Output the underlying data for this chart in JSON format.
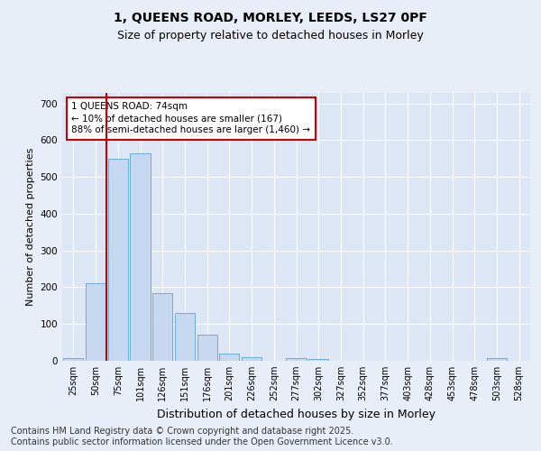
{
  "title1": "1, QUEENS ROAD, MORLEY, LEEDS, LS27 0PF",
  "title2": "Size of property relative to detached houses in Morley",
  "xlabel": "Distribution of detached houses by size in Morley",
  "ylabel": "Number of detached properties",
  "categories": [
    "25sqm",
    "50sqm",
    "75sqm",
    "101sqm",
    "126sqm",
    "151sqm",
    "176sqm",
    "201sqm",
    "226sqm",
    "252sqm",
    "277sqm",
    "302sqm",
    "327sqm",
    "352sqm",
    "377sqm",
    "403sqm",
    "428sqm",
    "453sqm",
    "478sqm",
    "503sqm",
    "528sqm"
  ],
  "values": [
    8,
    210,
    550,
    565,
    185,
    130,
    70,
    20,
    10,
    0,
    8,
    4,
    0,
    0,
    0,
    0,
    0,
    0,
    0,
    8,
    0
  ],
  "bar_color": "#c5d8ef",
  "bar_edge_color": "#6baed6",
  "vline_color": "#cc0000",
  "vline_pos": 1.5,
  "annotation_text": "1 QUEENS ROAD: 74sqm\n← 10% of detached houses are smaller (167)\n88% of semi-detached houses are larger (1,460) →",
  "annotation_box_edgecolor": "#cc0000",
  "ylim": [
    0,
    730
  ],
  "yticks": [
    0,
    100,
    200,
    300,
    400,
    500,
    600,
    700
  ],
  "bg_color": "#e8eef7",
  "plot_bg_color": "#dce6f5",
  "footer_text": "Contains HM Land Registry data © Crown copyright and database right 2025.\nContains public sector information licensed under the Open Government Licence v3.0.",
  "title_fontsize": 10,
  "subtitle_fontsize": 9,
  "footer_fontsize": 7,
  "ylabel_fontsize": 8,
  "xlabel_fontsize": 9,
  "tick_fontsize": 7,
  "annot_fontsize": 7.5
}
